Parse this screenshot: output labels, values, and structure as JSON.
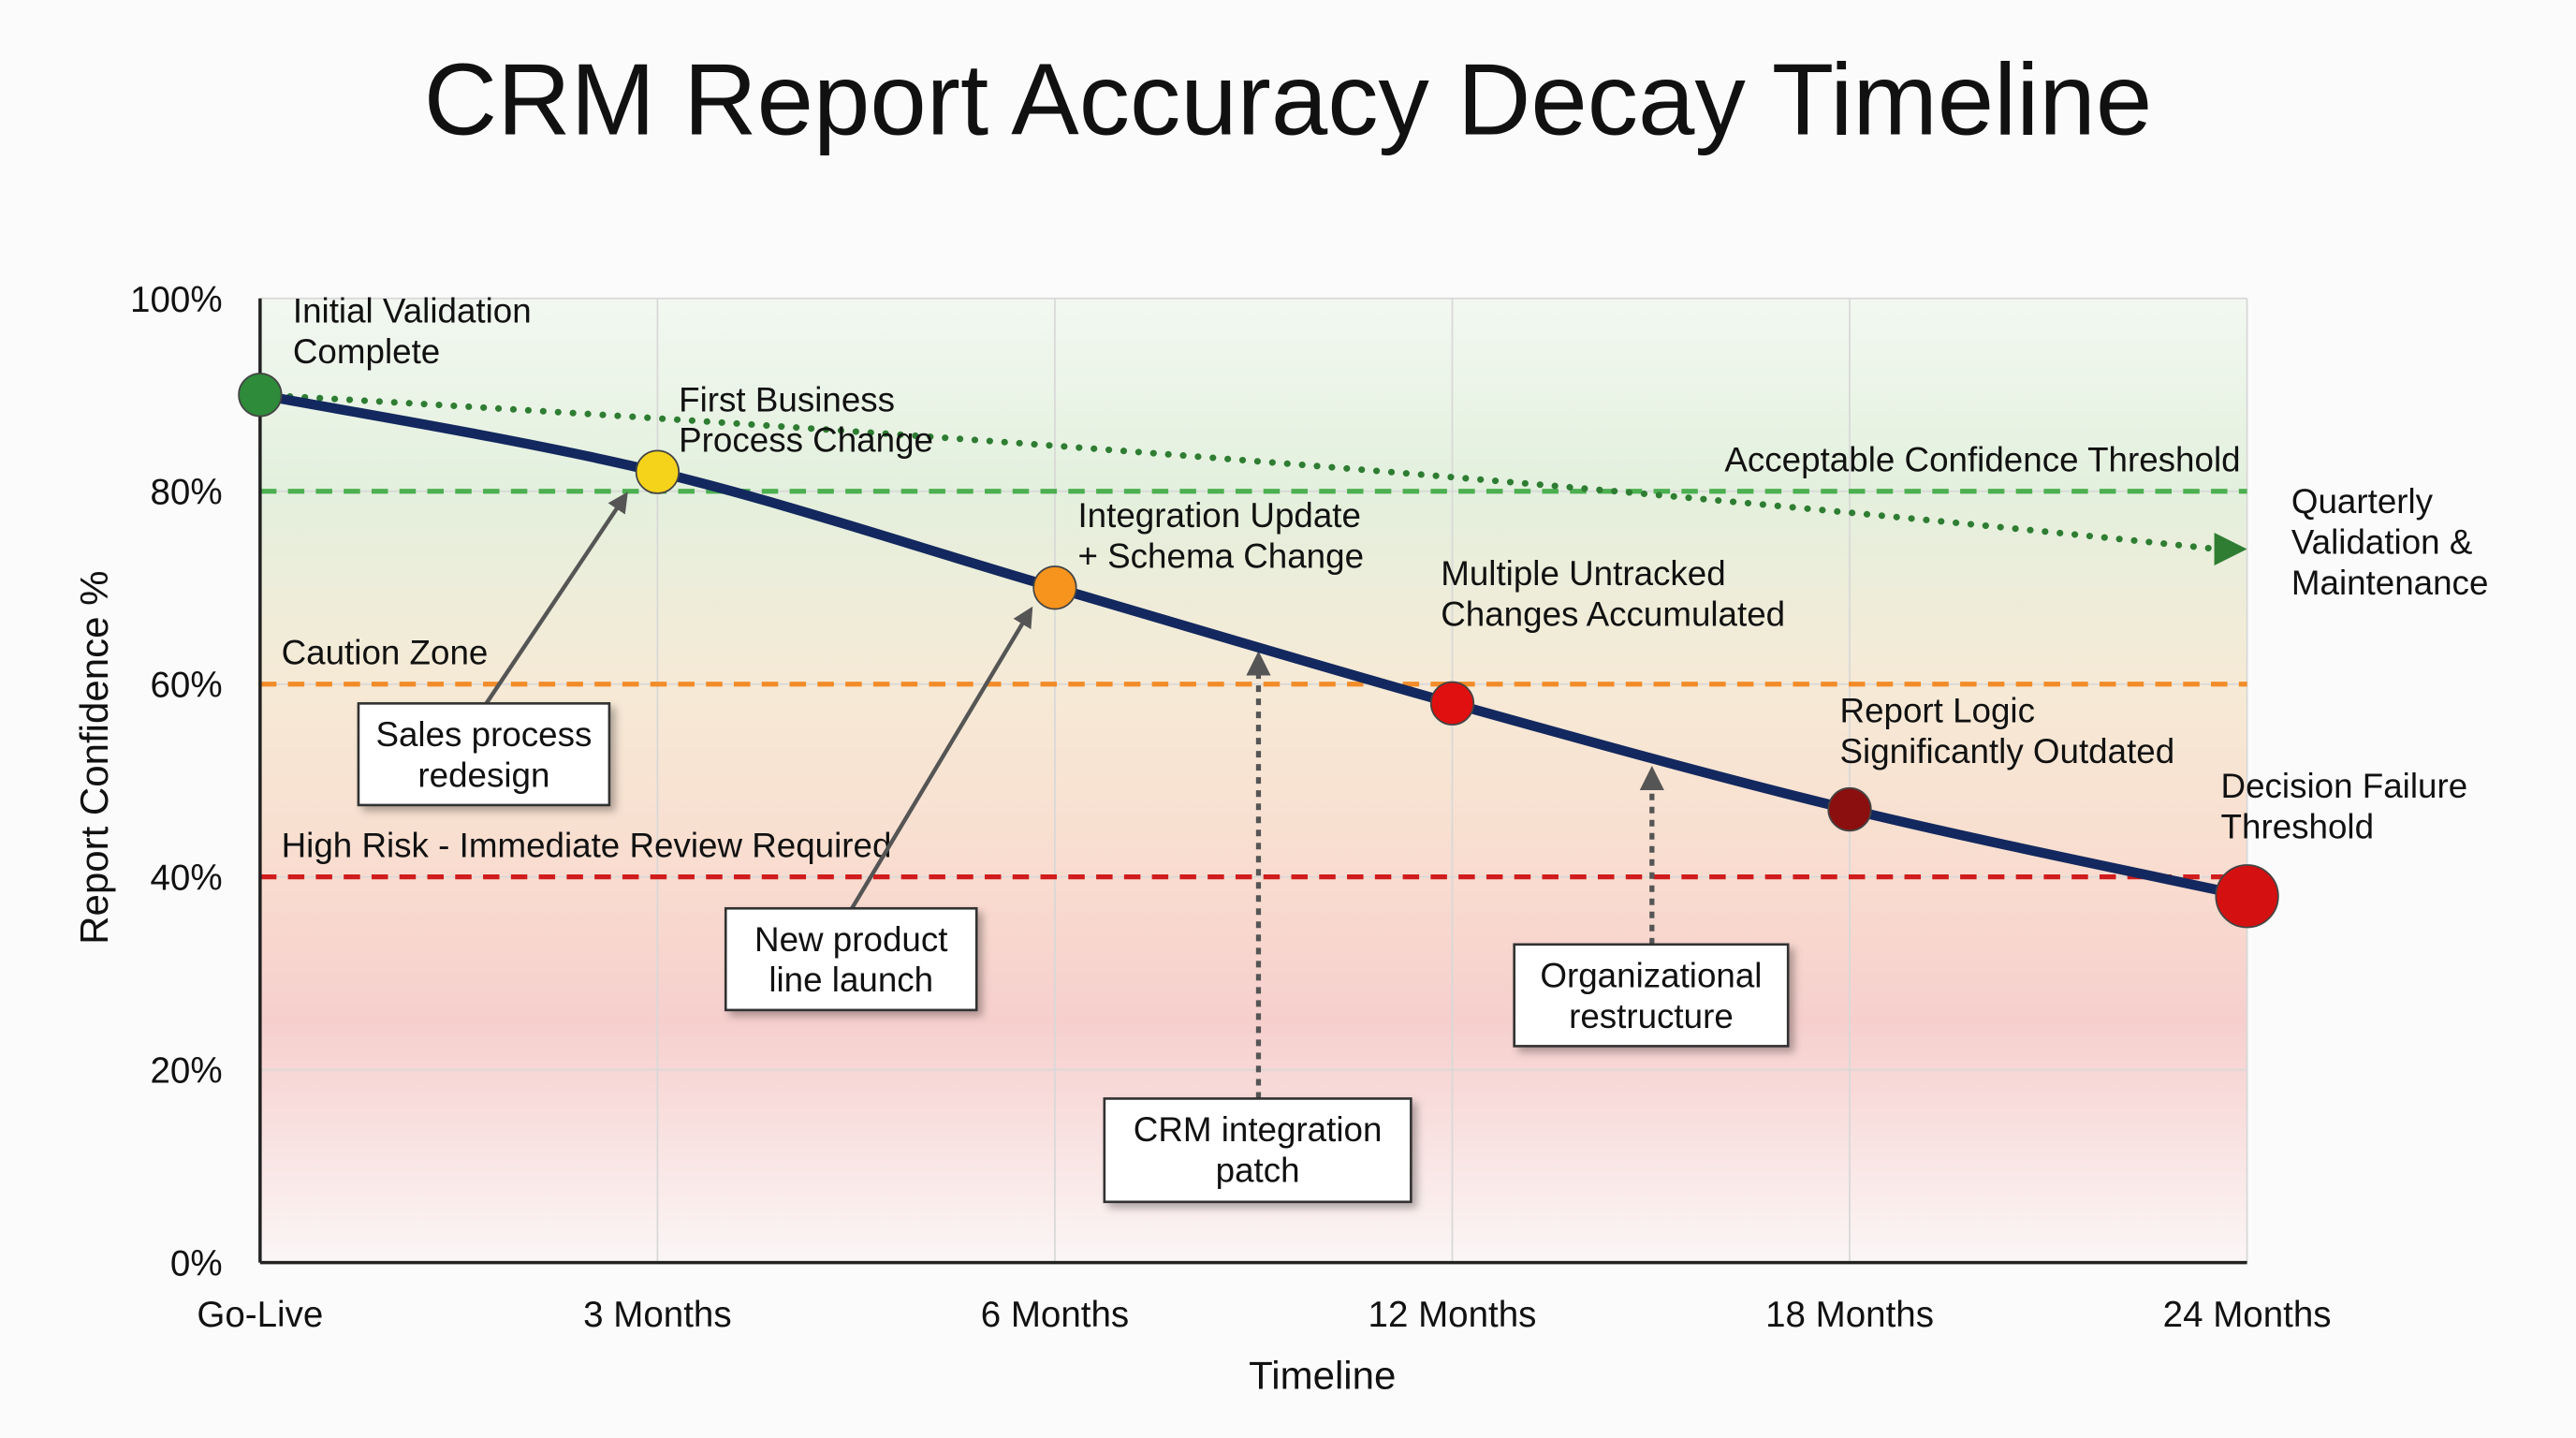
{
  "chart_data": {
    "type": "line",
    "title": "CRM Report Accuracy Decay Timeline",
    "xlabel": "Timeline",
    "ylabel": "Report Confidence %",
    "categories": [
      "Go-Live",
      "3 Months",
      "6 Months",
      "12 Months",
      "18 Months",
      "24 Months"
    ],
    "ylim": [
      0,
      100
    ],
    "yticks": [
      "0%",
      "20%",
      "40%",
      "60%",
      "80%",
      "100%"
    ],
    "grid": true,
    "series": [
      {
        "values": [
          90,
          82,
          70,
          58,
          47,
          38
        ],
        "color": "#13285e",
        "point_colors": [
          "#2e8b3a",
          "#f5d31a",
          "#f7941d",
          "#e01010",
          "#8b0f0f",
          "#d41010"
        ],
        "point_labels": [
          [
            "Initial Validation",
            "Complete"
          ],
          [
            "First Business",
            "Process Change"
          ],
          [
            "Integration Update",
            "+ Schema Change"
          ],
          [
            "Multiple Untracked",
            "Changes Accumulated"
          ],
          [
            "Report Logic",
            "Significantly Outdated"
          ],
          [
            "Decision Failure",
            "Threshold"
          ]
        ]
      },
      {
        "name": "Quarterly Validation & Maintenance",
        "name_lines": [
          "Quarterly",
          "Validation &",
          "Maintenance"
        ],
        "style": "dotted",
        "color": "#2e7d32",
        "values_start_end": [
          90,
          74
        ]
      }
    ],
    "thresholds": [
      {
        "value": 80,
        "label": "Acceptable Confidence Threshold",
        "color": "#4caf50"
      },
      {
        "value": 60,
        "label": "Caution Zone",
        "color": "#f28c28"
      },
      {
        "value": 40,
        "label": "High Risk - Immediate Review Required",
        "color": "#d01c1c"
      }
    ],
    "annotations": [
      {
        "lines": [
          "Sales process",
          "redesign"
        ],
        "style": "solid"
      },
      {
        "lines": [
          "New product",
          "line launch"
        ],
        "style": "solid"
      },
      {
        "lines": [
          "CRM integration",
          "patch"
        ],
        "style": "dotted"
      },
      {
        "lines": [
          "Organizational",
          "restructure"
        ],
        "style": "dotted"
      }
    ]
  }
}
